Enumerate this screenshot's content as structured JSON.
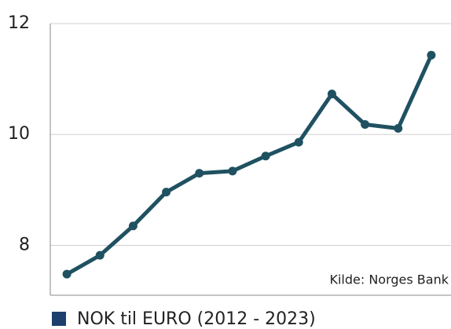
{
  "chart_data": {
    "type": "line",
    "series": [
      {
        "name": "NOK til EURO (2012 - 2023)",
        "color": "#1f5161",
        "values": [
          7.48,
          7.82,
          8.35,
          8.96,
          9.3,
          9.34,
          9.61,
          9.86,
          10.73,
          10.18,
          10.11,
          11.43
        ]
      }
    ],
    "legend_color": "#1d3f6e",
    "ylim": [
      7.1,
      12
    ],
    "yticks": [
      8,
      10,
      12
    ],
    "grid": true,
    "annotation": "Kilde: Norges Bank",
    "legend": "bottom-left"
  }
}
